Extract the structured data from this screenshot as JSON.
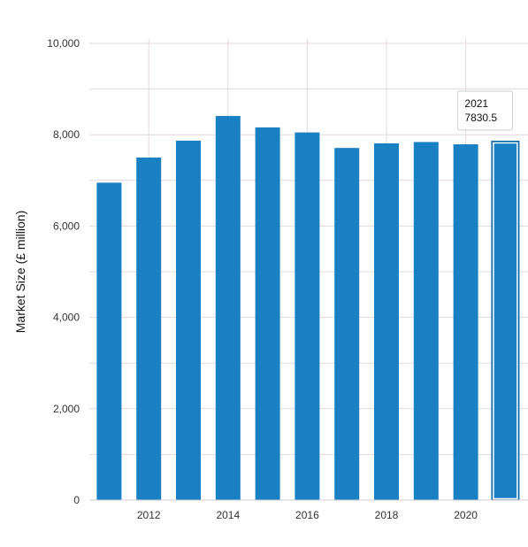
{
  "chart_data": {
    "type": "bar",
    "ylabel": "Market Size (£ million)",
    "ylim": [
      0,
      10000
    ],
    "y_ticks": [
      0,
      2000,
      4000,
      6000,
      8000,
      10000
    ],
    "y_tick_labels": [
      "0",
      "2,000",
      "4,000",
      "6,000",
      "8,000",
      "10,000"
    ],
    "x_tick_labels": [
      "2012",
      "2014",
      "2016",
      "2018",
      "2020"
    ],
    "categories": [
      "2011",
      "2012",
      "2013",
      "2014",
      "2015",
      "2016",
      "2017",
      "2018",
      "2019",
      "2020",
      "2021"
    ],
    "values": [
      6950,
      7500,
      7870,
      8410,
      8160,
      8050,
      7710,
      7810,
      7840,
      7790,
      7830.5
    ],
    "bar_color": "#1a80c4",
    "highlight_color": "#0f6aa8",
    "grid": true,
    "tooltip": {
      "category": "2021",
      "value_text": "7830.5"
    }
  }
}
